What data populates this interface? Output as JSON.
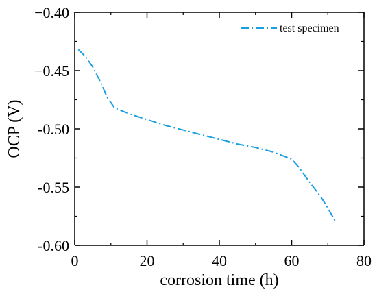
{
  "chart_data": {
    "type": "line",
    "xlabel": "corrosion time (h)",
    "ylabel": "OCP (V)",
    "xlim": [
      0,
      80
    ],
    "ylim": [
      -0.6,
      -0.4
    ],
    "xticks": [
      0,
      20,
      40,
      60,
      80
    ],
    "xtick_labels": [
      "0",
      "20",
      "40",
      "60",
      "80"
    ],
    "yticks": [
      -0.4,
      -0.45,
      -0.5,
      -0.55,
      -0.6
    ],
    "ytick_labels": [
      "−0.40",
      "−0.45",
      "-0.50",
      "-0.55",
      "-0.60"
    ],
    "grid": false,
    "legend": {
      "position": "top-right"
    },
    "series": [
      {
        "name": "test specimen",
        "color": "#1a9fe0",
        "line_style": "dash-dot",
        "x": [
          1,
          3,
          5,
          7,
          9,
          11,
          15,
          20,
          25,
          30,
          35,
          40,
          45,
          50,
          55,
          60,
          62,
          65,
          68,
          70,
          72
        ],
        "y": [
          -0.432,
          -0.438,
          -0.447,
          -0.459,
          -0.473,
          -0.482,
          -0.487,
          -0.492,
          -0.497,
          -0.501,
          -0.505,
          -0.509,
          -0.513,
          -0.516,
          -0.52,
          -0.526,
          -0.533,
          -0.546,
          -0.558,
          -0.568,
          -0.579
        ]
      }
    ]
  }
}
